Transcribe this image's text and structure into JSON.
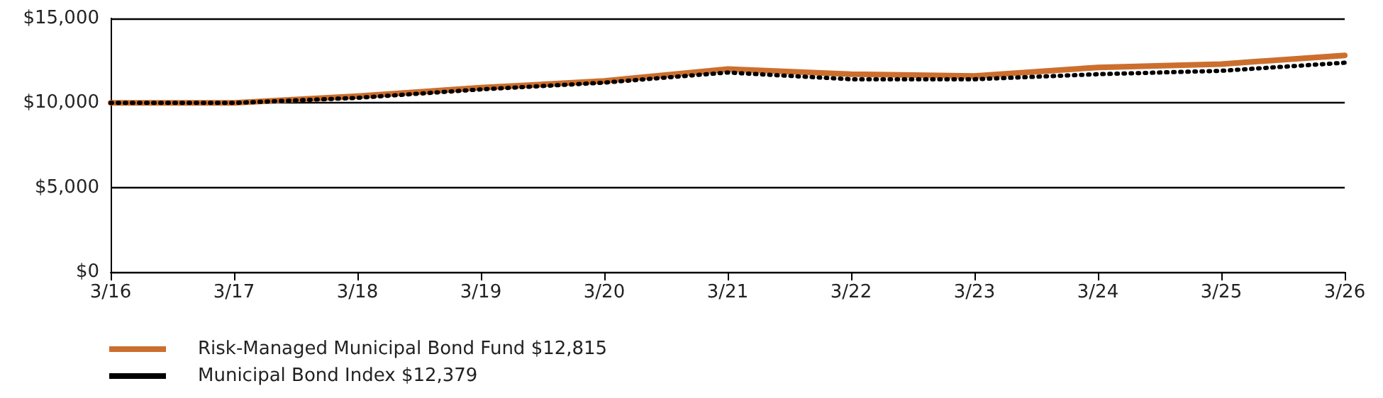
{
  "chart_data": {
    "type": "line",
    "categories": [
      "3/16",
      "3/17",
      "3/18",
      "3/19",
      "3/20",
      "3/21",
      "3/22",
      "3/23",
      "3/24",
      "3/25",
      "3/26"
    ],
    "series": [
      {
        "name": "Risk-Managed Municipal Bond Fund $12,815",
        "color": "#cc6f2e",
        "line_style": "solid",
        "values": [
          10000,
          10000,
          10400,
          10900,
          11300,
          12000,
          11700,
          11600,
          12100,
          12300,
          12815
        ]
      },
      {
        "name": "Municipal Bond Index $12,379",
        "color": "#000000",
        "line_style": "dotted",
        "values": [
          10000,
          10000,
          10300,
          10800,
          11200,
          11800,
          11400,
          11400,
          11700,
          11900,
          12379
        ]
      }
    ],
    "ylim": [
      0,
      15000
    ],
    "yticks": [
      {
        "value": 0,
        "label": "$0"
      },
      {
        "value": 5000,
        "label": "$5,000"
      },
      {
        "value": 10000,
        "label": "$10,000"
      },
      {
        "value": 15000,
        "label": "$15,000"
      }
    ],
    "grid": "y",
    "legend": "bottom left",
    "marker": "none"
  }
}
